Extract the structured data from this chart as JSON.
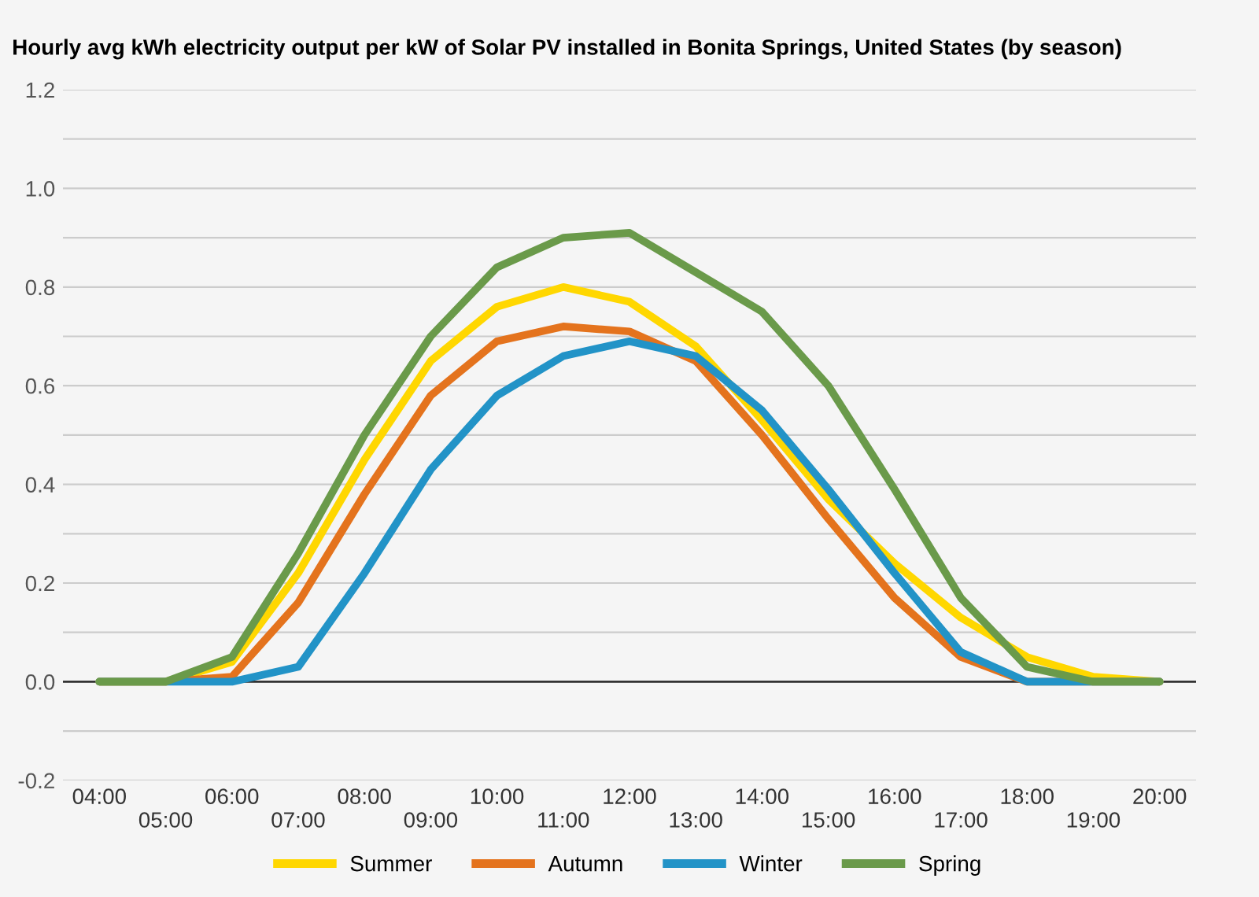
{
  "chart_data": {
    "type": "line",
    "title": "Hourly avg kWh electricity output per kW of Solar PV installed in Bonita Springs, United States (by season)",
    "categories": [
      "04:00",
      "05:00",
      "06:00",
      "07:00",
      "08:00",
      "09:00",
      "10:00",
      "11:00",
      "12:00",
      "13:00",
      "14:00",
      "15:00",
      "16:00",
      "17:00",
      "18:00",
      "19:00",
      "20:00"
    ],
    "series": [
      {
        "name": "Summer",
        "color": "#ffd700",
        "values": [
          0,
          0,
          0.04,
          0.22,
          0.45,
          0.65,
          0.76,
          0.8,
          0.77,
          0.68,
          0.53,
          0.37,
          0.24,
          0.13,
          0.05,
          0.01,
          0
        ]
      },
      {
        "name": "Autumn",
        "color": "#e4731d",
        "values": [
          0,
          0,
          0.01,
          0.16,
          0.38,
          0.58,
          0.69,
          0.72,
          0.71,
          0.65,
          0.5,
          0.33,
          0.17,
          0.05,
          0,
          0,
          0
        ]
      },
      {
        "name": "Winter",
        "color": "#2293c7",
        "values": [
          0,
          0,
          0,
          0.03,
          0.22,
          0.43,
          0.58,
          0.66,
          0.69,
          0.66,
          0.55,
          0.39,
          0.22,
          0.06,
          0,
          0,
          0
        ]
      },
      {
        "name": "Spring",
        "color": "#6a9a4a",
        "values": [
          0,
          0,
          0.05,
          0.26,
          0.5,
          0.7,
          0.84,
          0.9,
          0.91,
          0.83,
          0.75,
          0.6,
          0.39,
          0.17,
          0.03,
          0,
          0
        ]
      }
    ],
    "ylim": [
      -0.2,
      1.2
    ],
    "yticks": [
      -0.2,
      {
        "value": -0.1,
        "label": null
      },
      {
        "value": 0,
        "label": "0.0"
      },
      {
        "value": 0.1,
        "label": null
      },
      0.2,
      {
        "value": 0.3,
        "label": null
      },
      0.4,
      {
        "value": 0.5,
        "label": null
      },
      0.6,
      {
        "value": 0.7,
        "label": null
      },
      0.8,
      {
        "value": 0.9,
        "label": null
      },
      {
        "value": 1,
        "label": "1.0"
      },
      {
        "value": 1.1,
        "label": null
      },
      1.2
    ],
    "ref_lines": [
      {
        "axis": "y",
        "value": 0,
        "color": "#333333"
      }
    ],
    "grid": "y",
    "legend": "bottom",
    "marker": "none",
    "line_style": "solid"
  }
}
